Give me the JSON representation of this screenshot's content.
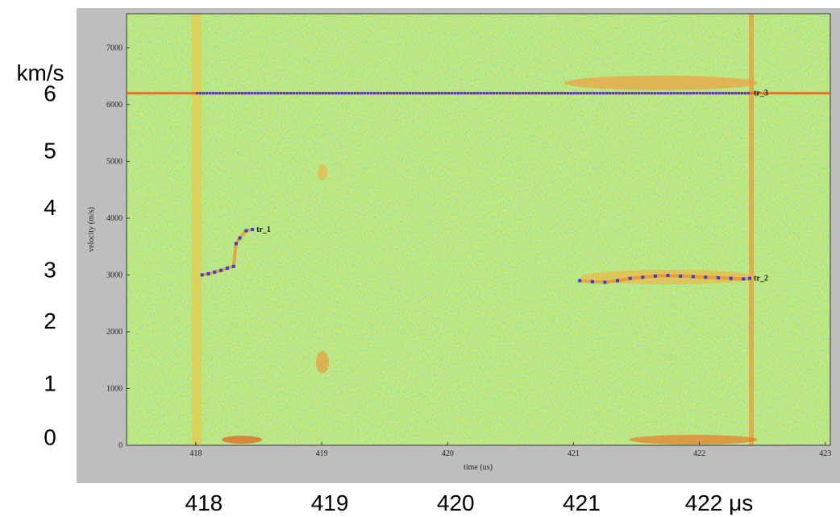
{
  "chart_data": {
    "type": "spectrogram",
    "x_label": "time (us)",
    "y_label": "velocity (m/s)",
    "xlim": [
      417.45,
      423.04
    ],
    "ylim": [
      0,
      7600
    ],
    "xticks": [
      418,
      419,
      420,
      421,
      422,
      423
    ],
    "yticks": [
      0,
      1000,
      2000,
      3000,
      4000,
      5000,
      6000,
      7000
    ],
    "overlay_y_unit": "km/s",
    "overlay_y_labels": [
      {
        "value": 6200,
        "label": "6"
      },
      {
        "value": 5200,
        "label": "5"
      },
      {
        "value": 4200,
        "label": "4"
      },
      {
        "value": 3100,
        "label": "3"
      },
      {
        "value": 2200,
        "label": "2"
      },
      {
        "value": 1100,
        "label": "1"
      },
      {
        "value": 150,
        "label": "0"
      }
    ],
    "overlay_x_labels": [
      {
        "value": 418,
        "label": "418"
      },
      {
        "value": 419,
        "label": "419"
      },
      {
        "value": 420,
        "label": "420"
      },
      {
        "value": 421,
        "label": "421"
      },
      {
        "value": 422,
        "label": "422 μs"
      }
    ],
    "series": [
      {
        "name": "tr_1",
        "color": "#3b3bd6",
        "x": [
          418.05,
          418.1,
          418.15,
          418.2,
          418.25,
          418.3,
          418.32,
          418.35,
          418.4,
          418.45
        ],
        "values": [
          3000,
          3020,
          3050,
          3080,
          3120,
          3150,
          3550,
          3650,
          3780,
          3800
        ]
      },
      {
        "name": "tr_2",
        "color": "#3b3bd6",
        "x": [
          421.05,
          421.15,
          421.25,
          421.35,
          421.45,
          421.55,
          421.65,
          421.75,
          421.85,
          421.95,
          422.05,
          422.15,
          422.25,
          422.35,
          422.4
        ],
        "values": [
          2900,
          2880,
          2870,
          2900,
          2940,
          2960,
          2980,
          2990,
          2980,
          2970,
          2960,
          2950,
          2940,
          2930,
          2940
        ]
      },
      {
        "name": "tr_3",
        "color": "#3b3bd6",
        "x": [
          418.0,
          422.4
        ],
        "values": [
          6200,
          6200
        ]
      }
    ]
  }
}
